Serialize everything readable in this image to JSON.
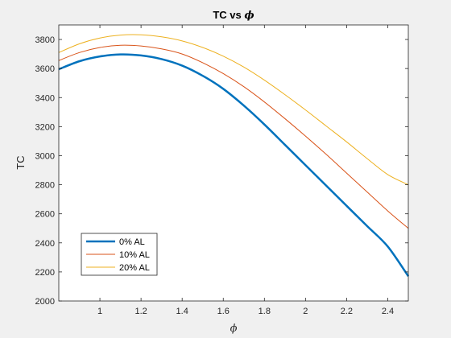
{
  "chart_data": {
    "type": "line",
    "title_text": "TC vs",
    "title_symbol": "ϕ",
    "xlabel": "ϕ",
    "ylabel": "TC",
    "xlim": [
      0.8,
      2.5
    ],
    "ylim": [
      2000,
      3900
    ],
    "xticks": [
      1,
      1.2,
      1.4,
      1.6,
      1.8,
      2,
      2.2,
      2.4
    ],
    "xtick_labels": [
      "1",
      "1.2",
      "1.4",
      "1.6",
      "1.8",
      "2",
      "2.2",
      "2.4"
    ],
    "yticks": [
      2000,
      2200,
      2400,
      2600,
      2800,
      3000,
      3200,
      3400,
      3600,
      3800
    ],
    "ytick_labels": [
      "2000",
      "2200",
      "2400",
      "2600",
      "2800",
      "3000",
      "3200",
      "3400",
      "3600",
      "3800"
    ],
    "grid": false,
    "legend_position": "bottom-left",
    "x": [
      0.8,
      0.9,
      1.0,
      1.1,
      1.2,
      1.3,
      1.4,
      1.5,
      1.6,
      1.7,
      1.8,
      1.9,
      2.0,
      2.1,
      2.2,
      2.3,
      2.4,
      2.5
    ],
    "series": [
      {
        "name": "0% AL",
        "color": "#0072BD",
        "width": 2.5,
        "values": [
          3595,
          3650,
          3683,
          3697,
          3690,
          3665,
          3620,
          3550,
          3460,
          3345,
          3215,
          3075,
          2935,
          2795,
          2655,
          2515,
          2375,
          2170
        ]
      },
      {
        "name": "10% AL",
        "color": "#D95319",
        "width": 1,
        "values": [
          3655,
          3710,
          3745,
          3760,
          3755,
          3735,
          3700,
          3640,
          3565,
          3475,
          3370,
          3255,
          3135,
          3010,
          2880,
          2750,
          2620,
          2500
        ]
      },
      {
        "name": "20% AL",
        "color": "#EDB120",
        "width": 1,
        "values": [
          3710,
          3770,
          3810,
          3830,
          3832,
          3818,
          3790,
          3745,
          3685,
          3610,
          3520,
          3420,
          3315,
          3205,
          3095,
          2980,
          2870,
          2800
        ]
      }
    ]
  }
}
